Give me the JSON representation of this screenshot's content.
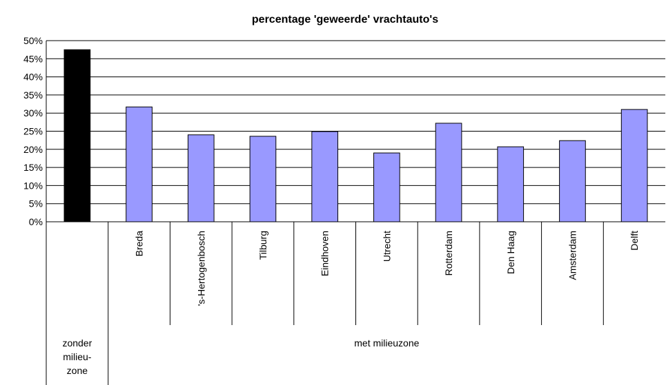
{
  "chart_data": {
    "type": "bar",
    "title": "percentage 'geweerde' vrachtauto's",
    "ylim": [
      0,
      50
    ],
    "yticks": [
      {
        "value": 0,
        "label": "0%"
      },
      {
        "value": 5,
        "label": "5%"
      },
      {
        "value": 10,
        "label": "10%"
      },
      {
        "value": 15,
        "label": "15%"
      },
      {
        "value": 20,
        "label": "20%"
      },
      {
        "value": 25,
        "label": "25%"
      },
      {
        "value": 30,
        "label": "30%"
      },
      {
        "value": 35,
        "label": "35%"
      },
      {
        "value": 40,
        "label": "40%"
      },
      {
        "value": 45,
        "label": "45%"
      },
      {
        "value": 50,
        "label": "50%"
      }
    ],
    "grid": true,
    "groups": [
      {
        "name": "zonder milieu-zone",
        "color": "#000000",
        "categories": [
          null
        ],
        "values": [
          47.5
        ]
      },
      {
        "name": "met milieuzone",
        "color": "#9999ff",
        "categories": [
          "Breda",
          "'s-Hertogenbosch",
          "Tilburg",
          "Eindhoven",
          "Utrecht",
          "Rotterdam",
          "Den Haag",
          "Amsterdam",
          "Delft"
        ],
        "values": [
          31.7,
          24.0,
          23.6,
          24.9,
          19.0,
          27.2,
          20.7,
          22.4,
          31.0
        ]
      }
    ]
  }
}
